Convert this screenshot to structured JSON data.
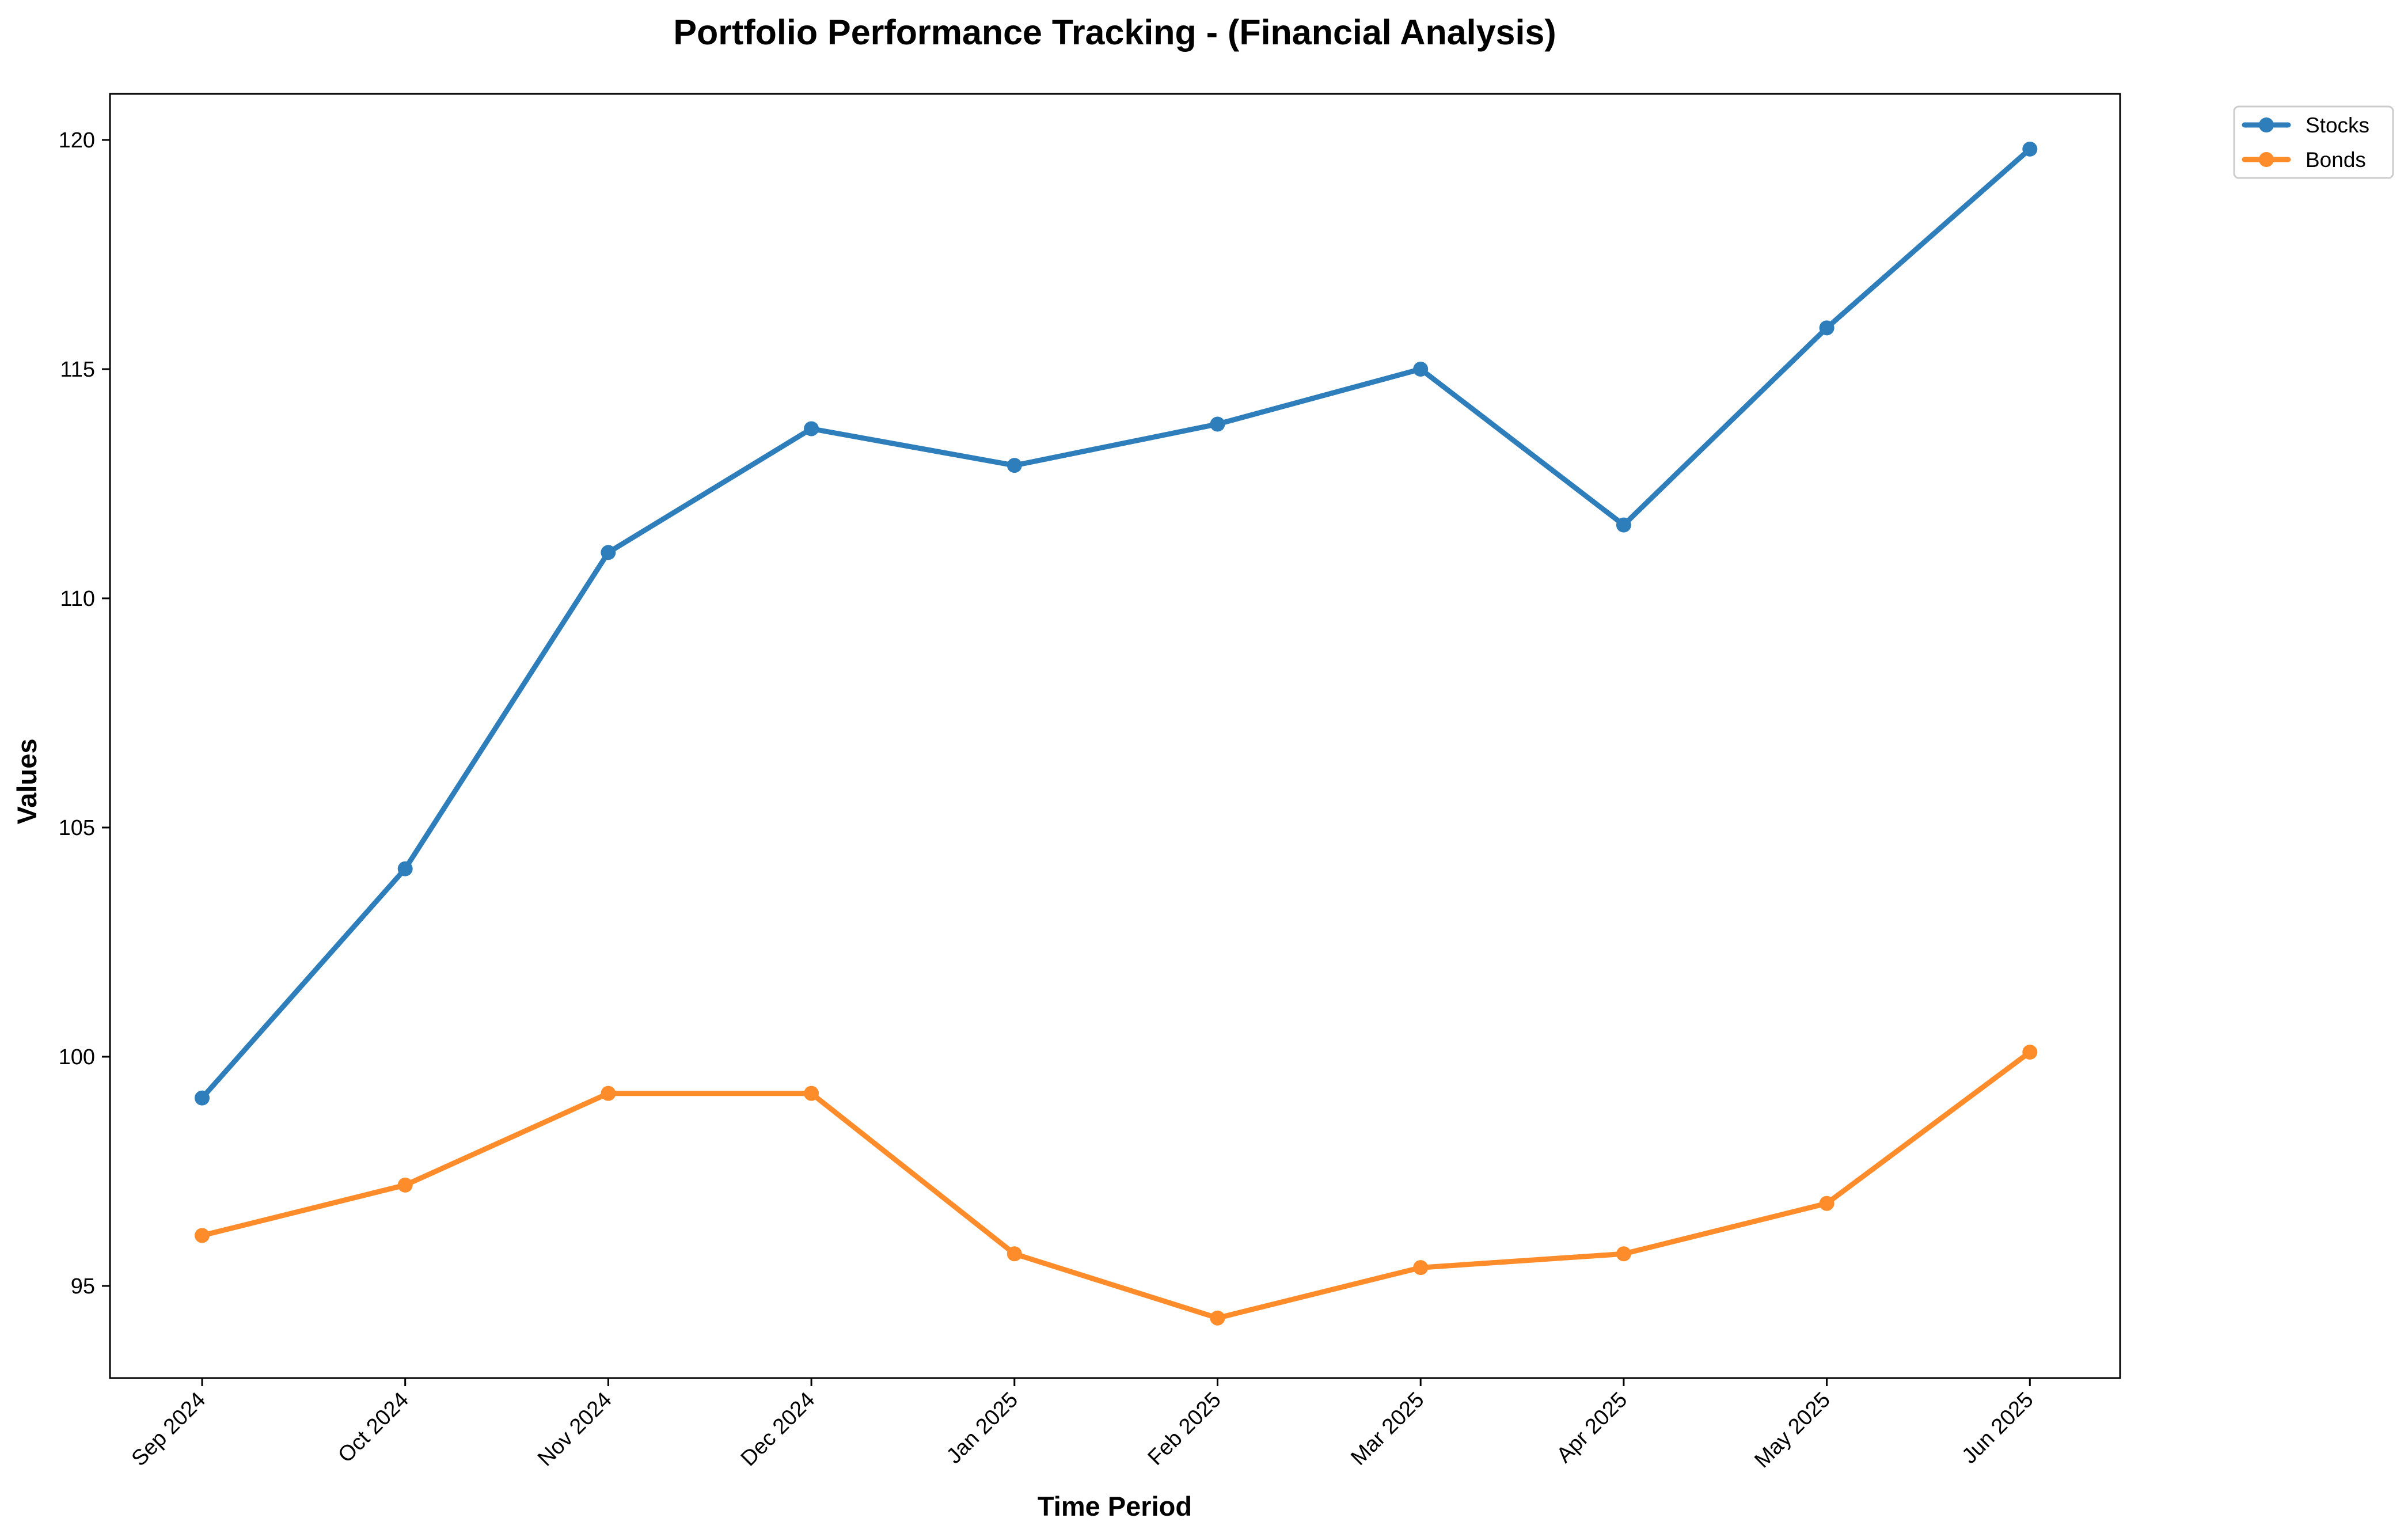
{
  "chart_data": {
    "type": "line",
    "title": "Portfolio Performance Tracking - (Financial Analysis)",
    "xlabel": "Time Period",
    "ylabel": "Values",
    "categories": [
      "Sep 2024",
      "Oct 2024",
      "Nov 2024",
      "Dec 2024",
      "Jan 2025",
      "Feb 2025",
      "Mar 2025",
      "Apr 2025",
      "May 2025",
      "Jun 2025"
    ],
    "series": [
      {
        "name": "Stocks",
        "color": "#2f7ebc",
        "values": [
          99.1,
          104.1,
          111.0,
          113.7,
          112.9,
          113.8,
          115.0,
          111.6,
          115.9,
          119.8
        ]
      },
      {
        "name": "Bonds",
        "color": "#ff8c2a",
        "values": [
          96.1,
          97.2,
          99.2,
          99.2,
          95.7,
          94.3,
          95.4,
          95.7,
          96.8,
          100.1
        ]
      }
    ],
    "ylim": [
      93,
      121
    ],
    "yticks": [
      "95",
      "100",
      "105",
      "110",
      "115",
      "120"
    ],
    "grid": false,
    "legend": "top-right, outside plot area",
    "markers": true
  }
}
